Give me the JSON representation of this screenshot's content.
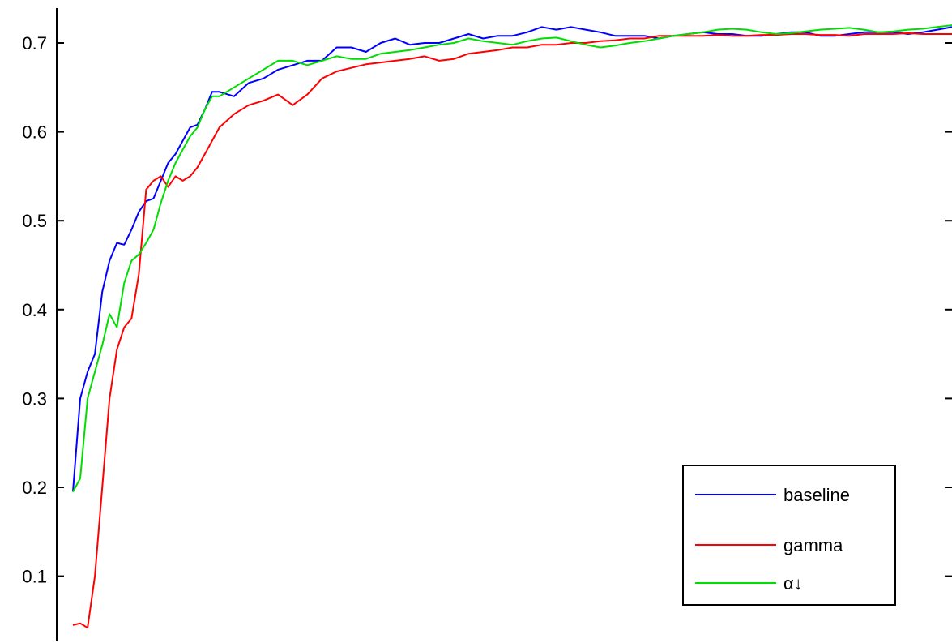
{
  "chart_data": {
    "type": "line",
    "title": "",
    "xlabel": "",
    "ylabel": "",
    "xlim": [
      0,
      120
    ],
    "ylim": [
      0.04,
      0.74
    ],
    "yticks": [
      "0.1",
      "0.2",
      "0.3",
      "0.4",
      "0.5",
      "0.6",
      "0.7"
    ],
    "legend": {
      "position": "bottom-right"
    },
    "grid": false,
    "series": [
      {
        "name": "baseline",
        "color": "#0000ff",
        "x": [
          0,
          1,
          2,
          3,
          4,
          5,
          6,
          7,
          8,
          9,
          10,
          11,
          12,
          13,
          14,
          15,
          16,
          17,
          18,
          19,
          20,
          22,
          24,
          26,
          28,
          30,
          32,
          34,
          36,
          38,
          40,
          42,
          44,
          46,
          48,
          50,
          52,
          54,
          56,
          58,
          60,
          62,
          64,
          66,
          68,
          70,
          72,
          74,
          76,
          78,
          80,
          82,
          84,
          86,
          88,
          90,
          92,
          94,
          96,
          98,
          100,
          102,
          104,
          106,
          108,
          110,
          112,
          114,
          116,
          118,
          120
        ],
        "y": [
          0.195,
          0.3,
          0.33,
          0.35,
          0.42,
          0.455,
          0.475,
          0.473,
          0.49,
          0.51,
          0.522,
          0.525,
          0.545,
          0.565,
          0.575,
          0.59,
          0.605,
          0.608,
          0.625,
          0.645,
          0.645,
          0.64,
          0.655,
          0.66,
          0.67,
          0.675,
          0.68,
          0.68,
          0.695,
          0.695,
          0.69,
          0.7,
          0.705,
          0.698,
          0.7,
          0.7,
          0.705,
          0.71,
          0.705,
          0.708,
          0.708,
          0.712,
          0.718,
          0.715,
          0.718,
          0.715,
          0.712,
          0.708,
          0.708,
          0.708,
          0.705,
          0.708,
          0.71,
          0.712,
          0.71,
          0.71,
          0.708,
          0.708,
          0.71,
          0.712,
          0.712,
          0.708,
          0.708,
          0.71,
          0.712,
          0.712,
          0.712,
          0.71,
          0.712,
          0.715,
          0.718
        ]
      },
      {
        "name": "gamma",
        "color": "#ff0000",
        "x": [
          0,
          1,
          2,
          3,
          4,
          5,
          6,
          7,
          8,
          9,
          10,
          11,
          12,
          13,
          14,
          15,
          16,
          17,
          18,
          19,
          20,
          22,
          24,
          26,
          28,
          30,
          32,
          34,
          36,
          38,
          40,
          42,
          44,
          46,
          48,
          50,
          52,
          54,
          56,
          58,
          60,
          62,
          64,
          66,
          68,
          70,
          72,
          74,
          76,
          78,
          80,
          82,
          84,
          86,
          88,
          90,
          92,
          94,
          96,
          98,
          100,
          102,
          104,
          106,
          108,
          110,
          112,
          114,
          116,
          118,
          120
        ],
        "y": [
          0.045,
          0.047,
          0.042,
          0.1,
          0.2,
          0.3,
          0.355,
          0.38,
          0.39,
          0.44,
          0.535,
          0.545,
          0.55,
          0.538,
          0.55,
          0.545,
          0.55,
          0.56,
          0.575,
          0.59,
          0.605,
          0.62,
          0.63,
          0.635,
          0.642,
          0.63,
          0.642,
          0.66,
          0.668,
          0.672,
          0.676,
          0.678,
          0.68,
          0.682,
          0.685,
          0.68,
          0.682,
          0.688,
          0.69,
          0.692,
          0.695,
          0.695,
          0.698,
          0.698,
          0.7,
          0.7,
          0.702,
          0.703,
          0.705,
          0.705,
          0.708,
          0.708,
          0.708,
          0.708,
          0.709,
          0.708,
          0.708,
          0.709,
          0.709,
          0.71,
          0.71,
          0.709,
          0.709,
          0.708,
          0.71,
          0.71,
          0.71,
          0.711,
          0.71,
          0.71,
          0.71
        ]
      },
      {
        "name": "α↓",
        "color": "#00dd00",
        "x": [
          0,
          1,
          2,
          3,
          4,
          5,
          6,
          7,
          8,
          9,
          10,
          11,
          12,
          13,
          14,
          15,
          16,
          17,
          18,
          19,
          20,
          22,
          24,
          26,
          28,
          30,
          32,
          34,
          36,
          38,
          40,
          42,
          44,
          46,
          48,
          50,
          52,
          54,
          56,
          58,
          60,
          62,
          64,
          66,
          68,
          70,
          72,
          74,
          76,
          78,
          80,
          82,
          84,
          86,
          88,
          90,
          92,
          94,
          96,
          98,
          100,
          102,
          104,
          106,
          108,
          110,
          112,
          114,
          116,
          118,
          120
        ],
        "y": [
          0.195,
          0.21,
          0.3,
          0.33,
          0.36,
          0.395,
          0.38,
          0.43,
          0.455,
          0.462,
          0.475,
          0.49,
          0.52,
          0.545,
          0.565,
          0.58,
          0.595,
          0.605,
          0.625,
          0.64,
          0.64,
          0.65,
          0.66,
          0.67,
          0.68,
          0.68,
          0.675,
          0.68,
          0.685,
          0.682,
          0.682,
          0.688,
          0.69,
          0.692,
          0.695,
          0.698,
          0.7,
          0.705,
          0.702,
          0.7,
          0.698,
          0.702,
          0.705,
          0.706,
          0.702,
          0.698,
          0.695,
          0.697,
          0.7,
          0.702,
          0.705,
          0.708,
          0.71,
          0.712,
          0.715,
          0.716,
          0.715,
          0.712,
          0.71,
          0.711,
          0.713,
          0.715,
          0.716,
          0.717,
          0.715,
          0.712,
          0.713,
          0.715,
          0.716,
          0.718,
          0.72
        ]
      }
    ]
  }
}
